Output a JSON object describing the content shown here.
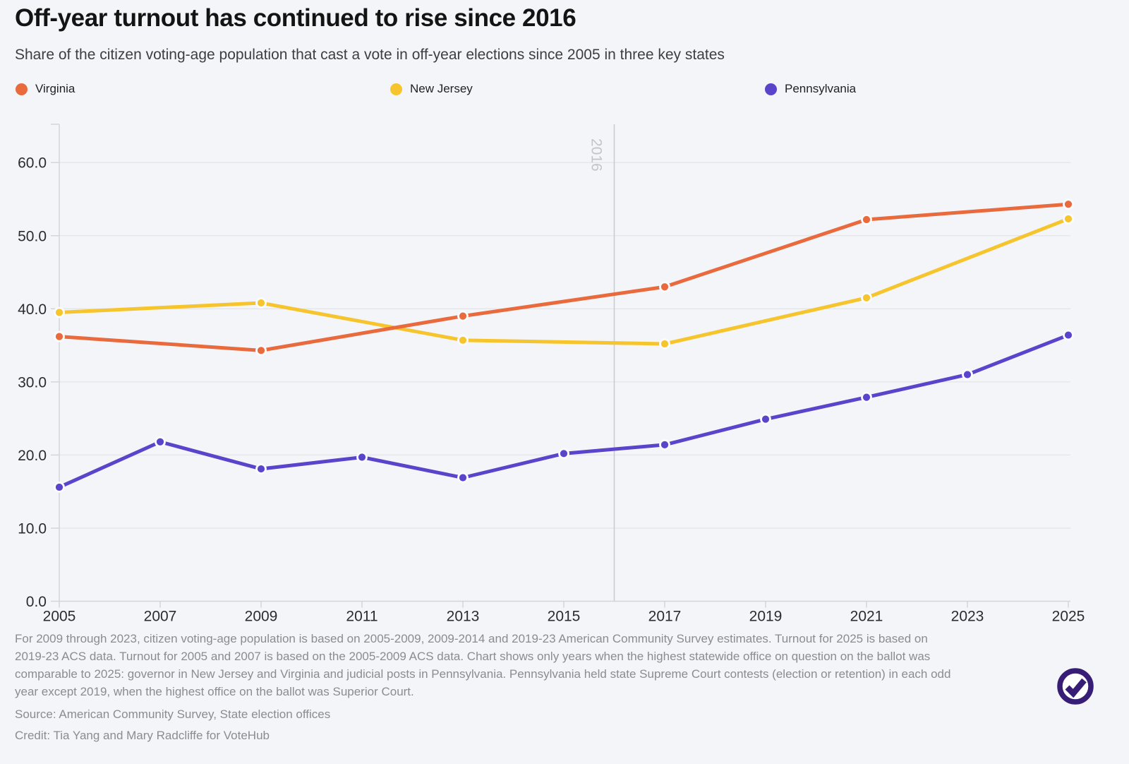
{
  "header": {
    "title": "Off-year turnout has continued to rise since 2016",
    "subtitle": "Share of the citizen voting-age population that cast a vote in off-year elections since 2005 in three key states"
  },
  "chart_data": {
    "type": "line",
    "title": "Off-year turnout has continued to rise since 2016",
    "xlabel": "",
    "ylabel": "",
    "x_tick_years": [
      2005,
      2007,
      2009,
      2011,
      2013,
      2015,
      2017,
      2019,
      2021,
      2023,
      2025
    ],
    "y_ticks": [
      0,
      10,
      20,
      30,
      40,
      50,
      60
    ],
    "y_tick_format": "one-decimal",
    "ylim": [
      0,
      65
    ],
    "grid": true,
    "legend_position": "top",
    "annotation_line": {
      "x": 2016,
      "label": "2016"
    },
    "series": [
      {
        "name": "Virginia",
        "color": "#E96A3D",
        "points": [
          [
            2005,
            36.2
          ],
          [
            2009,
            34.3
          ],
          [
            2013,
            39.0
          ],
          [
            2017,
            43.0
          ],
          [
            2021,
            52.2
          ],
          [
            2025,
            54.3
          ]
        ]
      },
      {
        "name": "New Jersey",
        "color": "#F6C52E",
        "points": [
          [
            2005,
            39.5
          ],
          [
            2009,
            40.8
          ],
          [
            2013,
            35.7
          ],
          [
            2017,
            35.2
          ],
          [
            2021,
            41.5
          ],
          [
            2025,
            52.3
          ]
        ]
      },
      {
        "name": "Pennsylvania",
        "color": "#5A44CB",
        "points": [
          [
            2005,
            15.6
          ],
          [
            2007,
            21.8
          ],
          [
            2009,
            18.1
          ],
          [
            2011,
            19.7
          ],
          [
            2013,
            16.9
          ],
          [
            2015,
            20.2
          ],
          [
            2017,
            21.4
          ],
          [
            2019,
            24.9
          ],
          [
            2021,
            27.9
          ],
          [
            2023,
            31.0
          ],
          [
            2025,
            36.4
          ]
        ]
      }
    ]
  },
  "footer": {
    "footnote_lines": [
      "For 2009 through 2023, citizen voting-age population is based on 2005-2009, 2009-2014 and 2019-23 American Community Survey estimates. Turnout for 2025 is based on",
      "2019-23 ACS data. Turnout for 2005 and 2007 is based on the 2005-2009 ACS data. Chart shows only years when the highest statewide office on question on the ballot was",
      "comparable to 2025: governor in New Jersey and Virginia and judicial posts in Pennsylvania. Pennsylvania held state Supreme Court contests (election or retention) in each odd",
      "year except 2019, when the highest office on the ballot was Superior Court."
    ],
    "source": "Source: American Community Survey, State election offices",
    "credit": "Credit: Tia Yang and Mary Radcliffe for VoteHub"
  },
  "colors": {
    "background": "#F4F5F8",
    "gridline": "#E4E5E9",
    "axis": "#D4D5D9",
    "annotation_line": "#C9CACE",
    "annotation_label": "#C3C4C8",
    "tick_label": "#2B2C2F",
    "marker_ring": "#FAFBFC",
    "logo": "#371D76"
  }
}
